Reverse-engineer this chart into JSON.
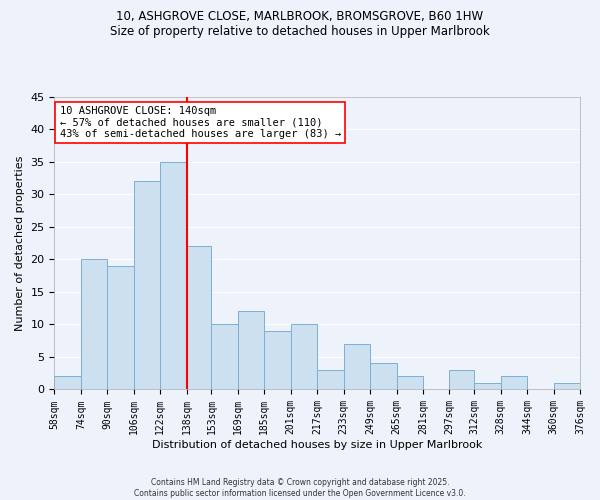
{
  "title_line1": "10, ASHGROVE CLOSE, MARLBROOK, BROMSGROVE, B60 1HW",
  "title_line2": "Size of property relative to detached houses in Upper Marlbrook",
  "xlabel": "Distribution of detached houses by size in Upper Marlbrook",
  "ylabel": "Number of detached properties",
  "bin_edges": [
    58,
    74,
    90,
    106,
    122,
    138,
    153,
    169,
    185,
    201,
    217,
    233,
    249,
    265,
    281,
    297,
    312,
    328,
    344,
    360,
    376
  ],
  "bin_labels": [
    "58sqm",
    "74sqm",
    "90sqm",
    "106sqm",
    "122sqm",
    "138sqm",
    "153sqm",
    "169sqm",
    "185sqm",
    "201sqm",
    "217sqm",
    "233sqm",
    "249sqm",
    "265sqm",
    "281sqm",
    "297sqm",
    "312sqm",
    "328sqm",
    "344sqm",
    "360sqm",
    "376sqm"
  ],
  "counts": [
    2,
    20,
    19,
    32,
    35,
    22,
    10,
    12,
    9,
    10,
    3,
    7,
    4,
    2,
    0,
    3,
    1,
    2,
    0,
    1
  ],
  "bar_color": "#cce0f0",
  "bar_edgecolor": "#7ab0d4",
  "vline_x": 138,
  "vline_color": "red",
  "annotation_line1": "10 ASHGROVE CLOSE: 140sqm",
  "annotation_line2": "← 57% of detached houses are smaller (110)",
  "annotation_line3": "43% of semi-detached houses are larger (83) →",
  "ylim": [
    0,
    45
  ],
  "yticks": [
    0,
    5,
    10,
    15,
    20,
    25,
    30,
    35,
    40,
    45
  ],
  "background_color": "#eef2fb",
  "grid_color": "#ffffff",
  "footer_line1": "Contains HM Land Registry data © Crown copyright and database right 2025.",
  "footer_line2": "Contains public sector information licensed under the Open Government Licence v3.0."
}
